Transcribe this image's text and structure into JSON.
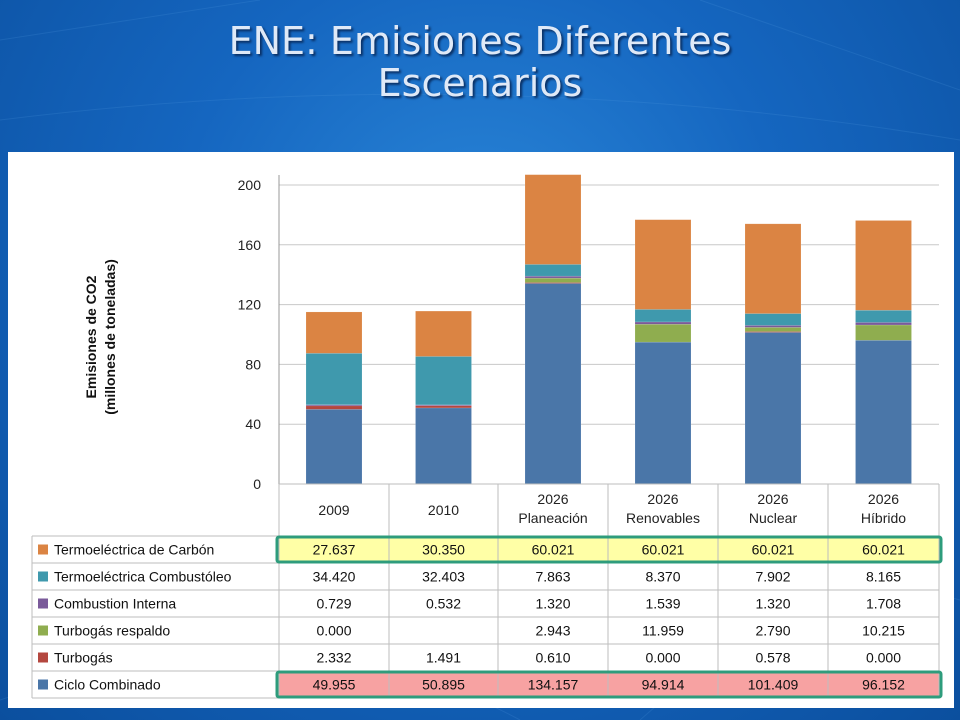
{
  "title": {
    "line1": "ENE: Emisiones Diferentes",
    "line2": "Escenarios"
  },
  "chart_data": {
    "type": "bar",
    "stacked": true,
    "ylabel_lines": [
      "Emisiones de CO2",
      "(millones de toneladas)"
    ],
    "ylim": [
      0,
      200
    ],
    "yticks": [
      0,
      40,
      80,
      120,
      160,
      200
    ],
    "grid": true,
    "categories": [
      [
        "2009"
      ],
      [
        "2010"
      ],
      [
        "2026",
        "Planeación"
      ],
      [
        "2026",
        "Renovables"
      ],
      [
        "2026",
        "Nuclear"
      ],
      [
        "2026",
        "Híbrido"
      ]
    ],
    "series": [
      {
        "name": "Ciclo Combinado",
        "color": "#4a76a8",
        "values": [
          49.955,
          50.895,
          134.157,
          94.914,
          101.409,
          96.152
        ],
        "labels": [
          "49.955",
          "50.895",
          "134.157",
          "94.914",
          "101.409",
          "96.152"
        ]
      },
      {
        "name": "Turbogás",
        "color": "#b4473f",
        "values": [
          2.332,
          1.491,
          0.61,
          0.0,
          0.578,
          0.0
        ],
        "labels": [
          "2.332",
          "1.491",
          "0.610",
          "0.000",
          "0.578",
          "0.000"
        ]
      },
      {
        "name": "Turbogás respaldo",
        "color": "#8fad4f",
        "values": [
          0.0,
          0.0,
          2.943,
          11.959,
          2.79,
          10.215
        ],
        "labels": [
          "0.000",
          "",
          "2.943",
          "11.959",
          "2.790",
          "10.215"
        ]
      },
      {
        "name": "Combustion Interna",
        "color": "#7a5a9a",
        "values": [
          0.729,
          0.532,
          1.32,
          1.539,
          1.32,
          1.708
        ],
        "labels": [
          "0.729",
          "0.532",
          "1.320",
          "1.539",
          "1.320",
          "1.708"
        ]
      },
      {
        "name": "Termoeléctrica Combustóleo",
        "color": "#3f99ad",
        "values": [
          34.42,
          32.403,
          7.863,
          8.37,
          7.902,
          8.165
        ],
        "labels": [
          "34.420",
          "32.403",
          "7.863",
          "8.370",
          "7.902",
          "8.165"
        ]
      },
      {
        "name": "Termoeléctrica de Carbón",
        "color": "#db8443",
        "values": [
          27.637,
          30.35,
          60.021,
          60.021,
          60.021,
          60.021
        ],
        "labels": [
          "27.637",
          "30.350",
          "60.021",
          "60.021",
          "60.021",
          "60.021"
        ]
      }
    ],
    "table_row_order": [
      "Termoeléctrica de Carbón",
      "Termoeléctrica Combustóleo",
      "Combustion Interna",
      "Turbogás respaldo",
      "Turbogás",
      "Ciclo Combinado"
    ],
    "highlights": [
      {
        "series": "Termoeléctrica de Carbón",
        "fill": "#ffffa6",
        "border": "#2e9c7c"
      },
      {
        "series": "Ciclo Combinado",
        "fill": "#f7a2a2",
        "border": "#2e9c7c"
      }
    ]
  }
}
